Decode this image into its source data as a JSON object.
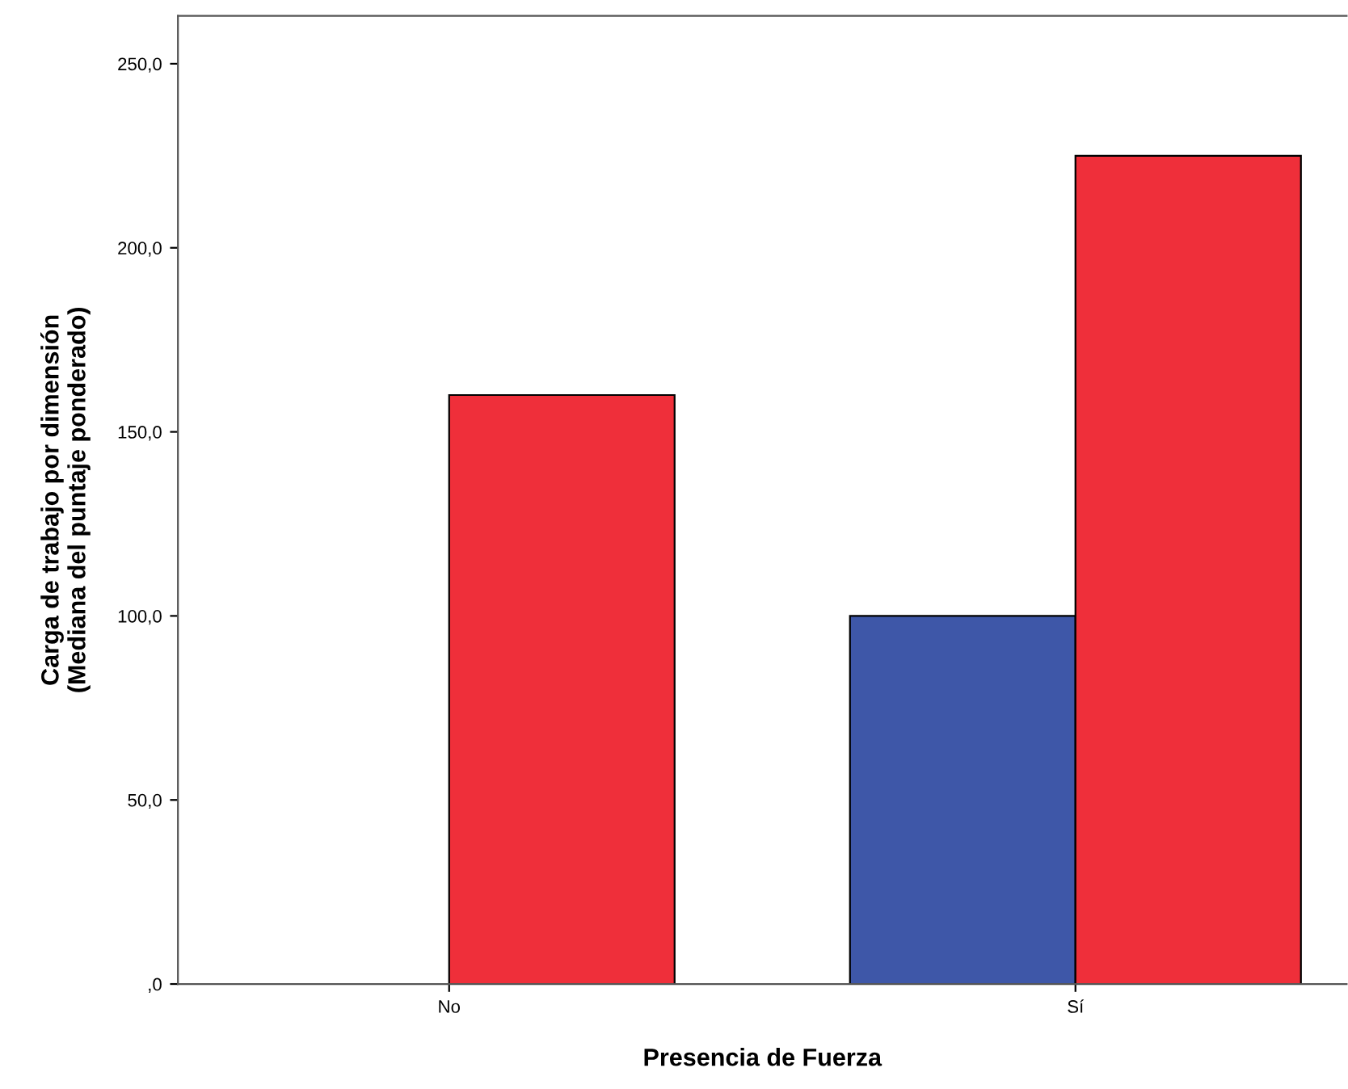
{
  "chart_data": {
    "type": "bar",
    "xlabel": "Presencia de Fuerza",
    "ylabel": "Carga de trabajo por dimensión\n(Mediana del puntaje ponderado)",
    "categories": [
      "No",
      "Sí"
    ],
    "series": [
      {
        "color": "#3e57a8",
        "values": [
          null,
          100
        ]
      },
      {
        "color": "#ef2f3a",
        "values": [
          160,
          225
        ]
      }
    ],
    "ylim": [
      0,
      263
    ],
    "yticks": [
      {
        "value": 0,
        "label": ",0"
      },
      {
        "value": 50,
        "label": "50,0"
      },
      {
        "value": 100,
        "label": "100,0"
      },
      {
        "value": 150,
        "label": "150,0"
      },
      {
        "value": 200,
        "label": "200,0"
      },
      {
        "value": 250,
        "label": "250,0"
      }
    ],
    "grid": false,
    "legend": false
  }
}
